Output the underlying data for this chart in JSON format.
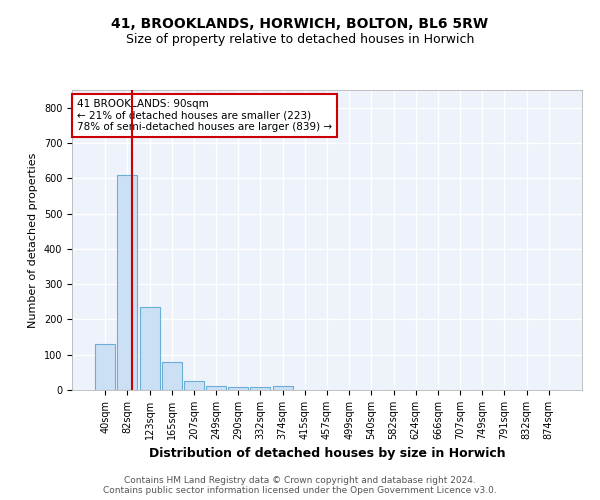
{
  "title": "41, BROOKLANDS, HORWICH, BOLTON, BL6 5RW",
  "subtitle": "Size of property relative to detached houses in Horwich",
  "xlabel": "Distribution of detached houses by size in Horwich",
  "ylabel": "Number of detached properties",
  "categories": [
    "40sqm",
    "82sqm",
    "123sqm",
    "165sqm",
    "207sqm",
    "249sqm",
    "290sqm",
    "332sqm",
    "374sqm",
    "415sqm",
    "457sqm",
    "499sqm",
    "540sqm",
    "582sqm",
    "624sqm",
    "666sqm",
    "707sqm",
    "749sqm",
    "791sqm",
    "832sqm",
    "874sqm"
  ],
  "values": [
    130,
    610,
    235,
    80,
    25,
    10,
    8,
    8,
    10,
    0,
    0,
    0,
    0,
    0,
    0,
    0,
    0,
    0,
    0,
    0,
    0
  ],
  "bar_color": "#cce0f5",
  "bar_edge_color": "#6aaed6",
  "red_line_x": 1.2,
  "annotation_line1": "41 BROOKLANDS: 90sqm",
  "annotation_line2": "← 21% of detached houses are smaller (223)",
  "annotation_line3": "78% of semi-detached houses are larger (839) →",
  "annotation_box_color": "#ffffff",
  "annotation_box_edge_color": "#cc0000",
  "ylim": [
    0,
    850
  ],
  "yticks": [
    0,
    100,
    200,
    300,
    400,
    500,
    600,
    700,
    800
  ],
  "footer_line1": "Contains HM Land Registry data © Crown copyright and database right 2024.",
  "footer_line2": "Contains public sector information licensed under the Open Government Licence v3.0.",
  "background_color": "#eef2fa",
  "grid_color": "#ffffff",
  "red_line_color": "#cc0000",
  "title_fontsize": 10,
  "subtitle_fontsize": 9,
  "xlabel_fontsize": 9,
  "ylabel_fontsize": 8,
  "tick_fontsize": 7,
  "footer_fontsize": 6.5,
  "annotation_fontsize": 7.5
}
